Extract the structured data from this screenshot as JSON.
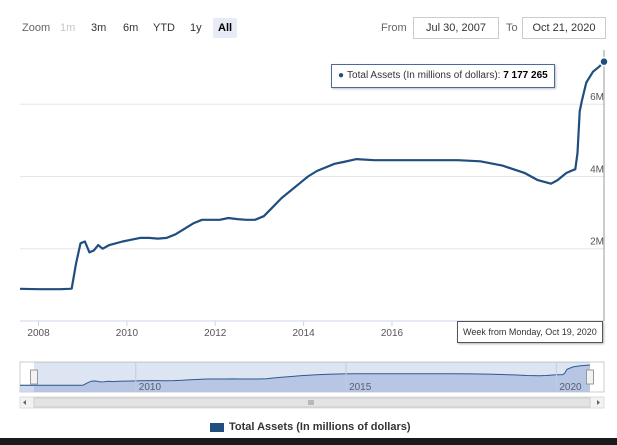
{
  "toolbar": {
    "zoom_label": "Zoom",
    "buttons": [
      {
        "label": "1m",
        "state": "disabled"
      },
      {
        "label": "3m",
        "state": "normal"
      },
      {
        "label": "6m",
        "state": "normal"
      },
      {
        "label": "YTD",
        "state": "normal"
      },
      {
        "label": "1y",
        "state": "normal"
      },
      {
        "label": "All",
        "state": "active"
      }
    ],
    "from_label": "From",
    "from_value": "Jul 30, 2007",
    "to_label": "To",
    "to_value": "Oct 21, 2020"
  },
  "tooltip": {
    "series_label": "Total Assets (In millions of dollars): ",
    "value": "7 177 265"
  },
  "crosshair_label": "Week from Monday, Oct 19, 2020",
  "legend_label": "Total Assets (In millions of dollars)",
  "colors": {
    "series": "#1f4e7f",
    "navigator_fill": "#c9d5ec",
    "grid": "#e6e6e6"
  },
  "chart_data": {
    "type": "line",
    "title": "",
    "series": [
      {
        "name": "Total Assets (In millions of dollars)",
        "x": [
          2007.58,
          2008.0,
          2008.5,
          2008.7,
          2008.75,
          2008.85,
          2008.95,
          2009.05,
          2009.15,
          2009.25,
          2009.35,
          2009.45,
          2009.6,
          2009.75,
          2009.9,
          2010.1,
          2010.3,
          2010.5,
          2010.7,
          2010.9,
          2011.1,
          2011.3,
          2011.5,
          2011.7,
          2011.9,
          2012.1,
          2012.3,
          2012.5,
          2012.7,
          2012.9,
          2013.1,
          2013.3,
          2013.5,
          2013.7,
          2013.9,
          2014.1,
          2014.3,
          2014.5,
          2014.7,
          2014.9,
          2015.2,
          2015.6,
          2016.0,
          2016.5,
          2017.0,
          2017.5,
          2018.0,
          2018.5,
          2019.0,
          2019.3,
          2019.6,
          2019.75,
          2019.85,
          2019.95,
          2020.05,
          2020.15,
          2020.2,
          2020.25,
          2020.3,
          2020.4,
          2020.55,
          2020.7,
          2020.8
        ],
        "y": [
          890,
          880,
          880,
          890,
          900,
          1600,
          2150,
          2200,
          1900,
          1950,
          2100,
          2000,
          2100,
          2150,
          2200,
          2250,
          2300,
          2300,
          2280,
          2300,
          2400,
          2550,
          2700,
          2800,
          2800,
          2800,
          2850,
          2820,
          2800,
          2800,
          2900,
          3150,
          3400,
          3600,
          3800,
          4000,
          4150,
          4250,
          4350,
          4400,
          4480,
          4450,
          4450,
          4450,
          4450,
          4450,
          4420,
          4300,
          4100,
          3900,
          3800,
          3900,
          4000,
          4100,
          4150,
          4200,
          4650,
          5800,
          6100,
          6600,
          6900,
          7050,
          7177
        ]
      }
    ],
    "x_ticks": [
      "2008",
      "2010",
      "2012",
      "2014",
      "2016"
    ],
    "y_ticks": [
      "2M",
      "4M",
      "6M"
    ],
    "navigator_ticks": [
      "2010",
      "2015",
      "2020"
    ],
    "xlim": [
      2007.58,
      2020.8
    ],
    "ylim": [
      0,
      7500
    ],
    "grid": true,
    "legend": "bottom-center"
  }
}
